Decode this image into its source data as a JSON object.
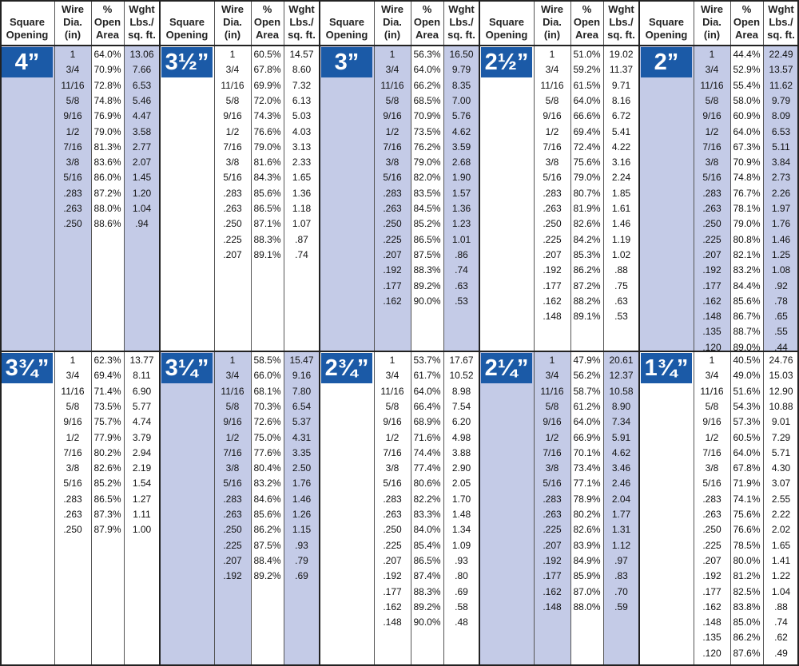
{
  "table": {
    "header": [
      [
        "Square",
        "Opening"
      ],
      [
        "Wire",
        "Dia.",
        "(in)"
      ],
      [
        "%",
        "Open",
        "Area"
      ],
      [
        "Wght",
        "Lbs./",
        "sq. ft."
      ]
    ],
    "sections": [
      {
        "opening": "4”",
        "rows": [
          [
            "1",
            "64.0%",
            "13.06"
          ],
          [
            "3/4",
            "70.9%",
            "7.66"
          ],
          [
            "11/16",
            "72.8%",
            "6.53"
          ],
          [
            "5/8",
            "74.8%",
            "5.46"
          ],
          [
            "9/16",
            "76.9%",
            "4.47"
          ],
          [
            "1/2",
            "79.0%",
            "3.58"
          ],
          [
            "7/16",
            "81.3%",
            "2.77"
          ],
          [
            "3/8",
            "83.6%",
            "2.07"
          ],
          [
            "5/16",
            "86.0%",
            "1.45"
          ],
          [
            ".283",
            "87.2%",
            "1.20"
          ],
          [
            ".263",
            "88.0%",
            "1.04"
          ],
          [
            ".250",
            "88.6%",
            ".94"
          ]
        ]
      },
      {
        "opening": "3½”",
        "rows": [
          [
            "1",
            "60.5%",
            "14.57"
          ],
          [
            "3/4",
            "67.8%",
            "8.60"
          ],
          [
            "11/16",
            "69.9%",
            "7.32"
          ],
          [
            "5/8",
            "72.0%",
            "6.13"
          ],
          [
            "9/16",
            "74.3%",
            "5.03"
          ],
          [
            "1/2",
            "76.6%",
            "4.03"
          ],
          [
            "7/16",
            "79.0%",
            "3.13"
          ],
          [
            "3/8",
            "81.6%",
            "2.33"
          ],
          [
            "5/16",
            "84.3%",
            "1.65"
          ],
          [
            ".283",
            "85.6%",
            "1.36"
          ],
          [
            ".263",
            "86.5%",
            "1.18"
          ],
          [
            ".250",
            "87.1%",
            "1.07"
          ],
          [
            ".225",
            "88.3%",
            ".87"
          ],
          [
            ".207",
            "89.1%",
            ".74"
          ]
        ]
      },
      {
        "opening": "3”",
        "rows": [
          [
            "1",
            "56.3%",
            "16.50"
          ],
          [
            "3/4",
            "64.0%",
            "9.79"
          ],
          [
            "11/16",
            "66.2%",
            "8.35"
          ],
          [
            "5/8",
            "68.5%",
            "7.00"
          ],
          [
            "9/16",
            "70.9%",
            "5.76"
          ],
          [
            "1/2",
            "73.5%",
            "4.62"
          ],
          [
            "7/16",
            "76.2%",
            "3.59"
          ],
          [
            "3/8",
            "79.0%",
            "2.68"
          ],
          [
            "5/16",
            "82.0%",
            "1.90"
          ],
          [
            ".283",
            "83.5%",
            "1.57"
          ],
          [
            ".263",
            "84.5%",
            "1.36"
          ],
          [
            ".250",
            "85.2%",
            "1.23"
          ],
          [
            ".225",
            "86.5%",
            "1.01"
          ],
          [
            ".207",
            "87.5%",
            ".86"
          ],
          [
            ".192",
            "88.3%",
            ".74"
          ],
          [
            ".177",
            "89.2%",
            ".63"
          ],
          [
            ".162",
            "90.0%",
            ".53"
          ]
        ]
      },
      {
        "opening": "2½”",
        "rows": [
          [
            "1",
            "51.0%",
            "19.02"
          ],
          [
            "3/4",
            "59.2%",
            "11.37"
          ],
          [
            "11/16",
            "61.5%",
            "9.71"
          ],
          [
            "5/8",
            "64.0%",
            "8.16"
          ],
          [
            "9/16",
            "66.6%",
            "6.72"
          ],
          [
            "1/2",
            "69.4%",
            "5.41"
          ],
          [
            "7/16",
            "72.4%",
            "4.22"
          ],
          [
            "3/8",
            "75.6%",
            "3.16"
          ],
          [
            "5/16",
            "79.0%",
            "2.24"
          ],
          [
            ".283",
            "80.7%",
            "1.85"
          ],
          [
            ".263",
            "81.9%",
            "1.61"
          ],
          [
            ".250",
            "82.6%",
            "1.46"
          ],
          [
            ".225",
            "84.2%",
            "1.19"
          ],
          [
            ".207",
            "85.3%",
            "1.02"
          ],
          [
            ".192",
            "86.2%",
            ".88"
          ],
          [
            ".177",
            "87.2%",
            ".75"
          ],
          [
            ".162",
            "88.2%",
            ".63"
          ],
          [
            ".148",
            "89.1%",
            ".53"
          ]
        ]
      },
      {
        "opening": "2”",
        "rows": [
          [
            "1",
            "44.4%",
            "22.49"
          ],
          [
            "3/4",
            "52.9%",
            "13.57"
          ],
          [
            "11/16",
            "55.4%",
            "11.62"
          ],
          [
            "5/8",
            "58.0%",
            "9.79"
          ],
          [
            "9/16",
            "60.9%",
            "8.09"
          ],
          [
            "1/2",
            "64.0%",
            "6.53"
          ],
          [
            "7/16",
            "67.3%",
            "5.11"
          ],
          [
            "3/8",
            "70.9%",
            "3.84"
          ],
          [
            "5/16",
            "74.8%",
            "2.73"
          ],
          [
            ".283",
            "76.7%",
            "2.26"
          ],
          [
            ".263",
            "78.1%",
            "1.97"
          ],
          [
            ".250",
            "79.0%",
            "1.76"
          ],
          [
            ".225",
            "80.8%",
            "1.46"
          ],
          [
            ".207",
            "82.1%",
            "1.25"
          ],
          [
            ".192",
            "83.2%",
            "1.08"
          ],
          [
            ".177",
            "84.4%",
            ".92"
          ],
          [
            ".162",
            "85.6%",
            ".78"
          ],
          [
            ".148",
            "86.7%",
            ".65"
          ],
          [
            ".135",
            "88.7%",
            ".55"
          ],
          [
            ".120",
            "89.0%",
            ".44"
          ]
        ]
      },
      {
        "opening": "3¾”",
        "rows": [
          [
            "1",
            "62.3%",
            "13.77"
          ],
          [
            "3/4",
            "69.4%",
            "8.11"
          ],
          [
            "11/16",
            "71.4%",
            "6.90"
          ],
          [
            "5/8",
            "73.5%",
            "5.77"
          ],
          [
            "9/16",
            "75.7%",
            "4.74"
          ],
          [
            "1/2",
            "77.9%",
            "3.79"
          ],
          [
            "7/16",
            "80.2%",
            "2.94"
          ],
          [
            "3/8",
            "82.6%",
            "2.19"
          ],
          [
            "5/16",
            "85.2%",
            "1.54"
          ],
          [
            ".283",
            "86.5%",
            "1.27"
          ],
          [
            ".263",
            "87.3%",
            "1.11"
          ],
          [
            ".250",
            "87.9%",
            "1.00"
          ]
        ]
      },
      {
        "opening": "3¼”",
        "rows": [
          [
            "1",
            "58.5%",
            "15.47"
          ],
          [
            "3/4",
            "66.0%",
            "9.16"
          ],
          [
            "11/16",
            "68.1%",
            "7.80"
          ],
          [
            "5/8",
            "70.3%",
            "6.54"
          ],
          [
            "9/16",
            "72.6%",
            "5.37"
          ],
          [
            "1/2",
            "75.0%",
            "4.31"
          ],
          [
            "7/16",
            "77.6%",
            "3.35"
          ],
          [
            "3/8",
            "80.4%",
            "2.50"
          ],
          [
            "5/16",
            "83.2%",
            "1.76"
          ],
          [
            ".283",
            "84.6%",
            "1.46"
          ],
          [
            ".263",
            "85.6%",
            "1.26"
          ],
          [
            ".250",
            "86.2%",
            "1.15"
          ],
          [
            ".225",
            "87.5%",
            ".93"
          ],
          [
            ".207",
            "88.4%",
            ".79"
          ],
          [
            ".192",
            "89.2%",
            ".69"
          ]
        ]
      },
      {
        "opening": "2¾”",
        "rows": [
          [
            "1",
            "53.7%",
            "17.67"
          ],
          [
            "3/4",
            "61.7%",
            "10.52"
          ],
          [
            "11/16",
            "64.0%",
            "8.98"
          ],
          [
            "5/8",
            "66.4%",
            "7.54"
          ],
          [
            "9/16",
            "68.9%",
            "6.20"
          ],
          [
            "1/2",
            "71.6%",
            "4.98"
          ],
          [
            "7/16",
            "74.4%",
            "3.88"
          ],
          [
            "3/8",
            "77.4%",
            "2.90"
          ],
          [
            "5/16",
            "80.6%",
            "2.05"
          ],
          [
            ".283",
            "82.2%",
            "1.70"
          ],
          [
            ".263",
            "83.3%",
            "1.48"
          ],
          [
            ".250",
            "84.0%",
            "1.34"
          ],
          [
            ".225",
            "85.4%",
            "1.09"
          ],
          [
            ".207",
            "86.5%",
            ".93"
          ],
          [
            ".192",
            "87.4%",
            ".80"
          ],
          [
            ".177",
            "88.3%",
            ".69"
          ],
          [
            ".162",
            "89.2%",
            ".58"
          ],
          [
            ".148",
            "90.0%",
            ".48"
          ]
        ]
      },
      {
        "opening": "2¼”",
        "rows": [
          [
            "1",
            "47.9%",
            "20.61"
          ],
          [
            "3/4",
            "56.2%",
            "12.37"
          ],
          [
            "11/16",
            "58.7%",
            "10.58"
          ],
          [
            "5/8",
            "61.2%",
            "8.90"
          ],
          [
            "9/16",
            "64.0%",
            "7.34"
          ],
          [
            "1/2",
            "66.9%",
            "5.91"
          ],
          [
            "7/16",
            "70.1%",
            "4.62"
          ],
          [
            "3/8",
            "73.4%",
            "3.46"
          ],
          [
            "5/16",
            "77.1%",
            "2.46"
          ],
          [
            ".283",
            "78.9%",
            "2.04"
          ],
          [
            ".263",
            "80.2%",
            "1.77"
          ],
          [
            ".225",
            "82.6%",
            "1.31"
          ],
          [
            ".207",
            "83.9%",
            "1.12"
          ],
          [
            ".192",
            "84.9%",
            ".97"
          ],
          [
            ".177",
            "85.9%",
            ".83"
          ],
          [
            ".162",
            "87.0%",
            ".70"
          ],
          [
            ".148",
            "88.0%",
            ".59"
          ]
        ]
      },
      {
        "opening": "1¾”",
        "rows": [
          [
            "1",
            "40.5%",
            "24.76"
          ],
          [
            "3/4",
            "49.0%",
            "15.03"
          ],
          [
            "11/16",
            "51.6%",
            "12.90"
          ],
          [
            "5/8",
            "54.3%",
            "10.88"
          ],
          [
            "9/16",
            "57.3%",
            "9.01"
          ],
          [
            "1/2",
            "60.5%",
            "7.29"
          ],
          [
            "7/16",
            "64.0%",
            "5.71"
          ],
          [
            "3/8",
            "67.8%",
            "4.30"
          ],
          [
            "5/16",
            "71.9%",
            "3.07"
          ],
          [
            ".283",
            "74.1%",
            "2.55"
          ],
          [
            ".263",
            "75.6%",
            "2.22"
          ],
          [
            ".250",
            "76.6%",
            "2.02"
          ],
          [
            ".225",
            "78.5%",
            "1.65"
          ],
          [
            ".207",
            "80.0%",
            "1.41"
          ],
          [
            ".192",
            "81.2%",
            "1.22"
          ],
          [
            ".177",
            "82.5%",
            "1.04"
          ],
          [
            ".162",
            "83.8%",
            ".88"
          ],
          [
            ".148",
            "85.0%",
            ".74"
          ],
          [
            ".135",
            "86.2%",
            ".62"
          ],
          [
            ".120",
            "87.6%",
            ".49"
          ]
        ]
      }
    ]
  }
}
